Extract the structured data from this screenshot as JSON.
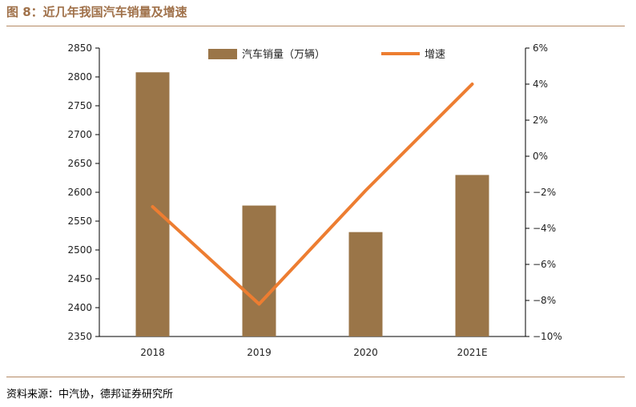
{
  "figure": {
    "title": "图 8：近几年我国汽车销量及增速",
    "source": "资料来源：中汽协，德邦证券研究所"
  },
  "colors": {
    "bar": "#9a7548",
    "line": "#ed7d31",
    "title": "#a0714a",
    "rule": "#b58a64"
  },
  "chart_data": {
    "type": "bar",
    "categories": [
      "2018",
      "2019",
      "2020",
      "2021E"
    ],
    "series": [
      {
        "name": "汽车销量（万辆）",
        "type": "bar",
        "axis": "left",
        "values": [
          2808,
          2577,
          2531,
          2630
        ]
      },
      {
        "name": "增速",
        "type": "line",
        "axis": "right",
        "values": [
          -2.8,
          -8.2,
          -1.9,
          4.0
        ]
      }
    ],
    "y_left": {
      "ylim": [
        2350,
        2850
      ],
      "ticks": [
        "2350",
        "2400",
        "2450",
        "2500",
        "2550",
        "2600",
        "2650",
        "2700",
        "2750",
        "2800",
        "2850"
      ]
    },
    "y_right": {
      "ylim": [
        -10,
        6
      ],
      "ticks": [
        "−10%",
        "−8%",
        "−6%",
        "−4%",
        "−2%",
        "0%",
        "2%",
        "4%",
        "6%"
      ]
    },
    "legend_position": "top-center",
    "grid": false
  }
}
